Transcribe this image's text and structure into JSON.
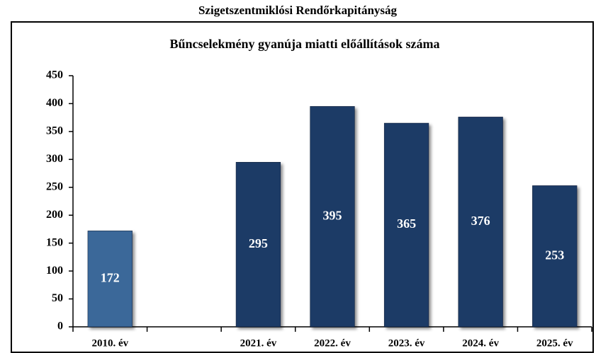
{
  "chart_data": {
    "type": "bar",
    "page_title": "Szigetszentmiklósi Rendőrkapitányság",
    "title": "Bűncselekmény gyanúja miatti előállítások száma",
    "categories": [
      "2010. év",
      null,
      "2021. év",
      "2022. év",
      "2023. év",
      "2024. év",
      "2025. év"
    ],
    "values": [
      172,
      null,
      295,
      395,
      365,
      376,
      253
    ],
    "colors": [
      "#3b6799",
      null,
      "#1f3a66",
      "#1f3a66",
      "#1f3a66",
      "#1f3a66",
      "#1f3a66"
    ],
    "ylim": [
      0,
      450
    ],
    "yticks": [
      0,
      50,
      100,
      150,
      200,
      250,
      300,
      350,
      400,
      450
    ],
    "grid": false
  }
}
